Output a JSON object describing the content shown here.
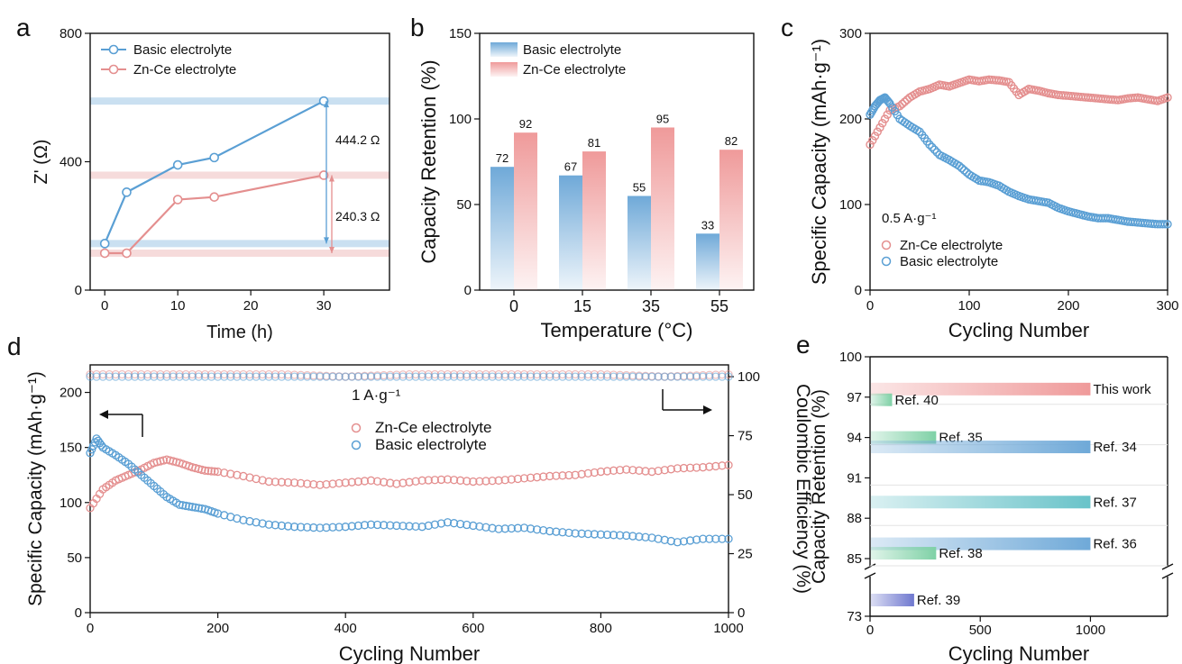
{
  "colors": {
    "blue": "#5a9fd4",
    "red": "#e48f8f",
    "blue_fill": "#6fa9d8",
    "red_fill": "#ef9a9a",
    "green": "#7fd1a6",
    "teal": "#69c3c9",
    "purple": "#6f78cf"
  },
  "chart_data": [
    {
      "panel": "a",
      "type": "line",
      "xlabel": "Time (h)",
      "ylabel": "Z' (Ω)",
      "xlim": [
        -2,
        39
      ],
      "ylim": [
        0,
        800
      ],
      "xticks": [
        "0",
        "10",
        "20",
        "30"
      ],
      "yticks": [
        "0",
        "400",
        "800"
      ],
      "legend": [
        "Basic electrolyte",
        "Zn-Ce electrolyte"
      ],
      "series": [
        {
          "name": "Basic electrolyte",
          "x": [
            0,
            3,
            10,
            15,
            30
          ],
          "y": [
            145,
            305,
            390,
            413,
            589
          ]
        },
        {
          "name": "Zn-Ce electrolyte",
          "x": [
            0,
            3,
            10,
            15,
            30
          ],
          "y": [
            115,
            115,
            282,
            290,
            358
          ]
        }
      ],
      "annotations": [
        "444.2 Ω",
        "240.3 Ω"
      ]
    },
    {
      "panel": "b",
      "type": "bar",
      "xlabel": "Temperature (°C)",
      "ylabel": "Capacity Retention (%)",
      "ylim": [
        0,
        150
      ],
      "categories": [
        "0",
        "15",
        "35",
        "55"
      ],
      "yticks": [
        "0",
        "50",
        "100",
        "150"
      ],
      "series": [
        {
          "name": "Basic electrolyte",
          "values": [
            72,
            67,
            55,
            33
          ]
        },
        {
          "name": "Zn-Ce electrolyte",
          "values": [
            92,
            81,
            95,
            82
          ]
        }
      ]
    },
    {
      "panel": "c",
      "type": "scatter",
      "xlabel": "Cycling Number",
      "ylabel": "Specific Capacity (mAh·g⁻¹)",
      "xlim": [
        0,
        300
      ],
      "ylim": [
        0,
        300
      ],
      "xticks": [
        "0",
        "100",
        "200",
        "300"
      ],
      "yticks": [
        "0",
        "100",
        "200",
        "300"
      ],
      "annotation": "0.5 A·g⁻¹",
      "series": [
        {
          "name": "Zn-Ce electrolyte",
          "x": [
            0,
            10,
            20,
            30,
            40,
            50,
            60,
            70,
            80,
            90,
            100,
            110,
            120,
            130,
            140,
            150,
            160,
            170,
            180,
            190,
            200,
            210,
            220,
            230,
            240,
            250,
            260,
            270,
            280,
            290,
            300
          ],
          "y": [
            170,
            190,
            210,
            215,
            225,
            232,
            235,
            240,
            238,
            242,
            246,
            244,
            246,
            245,
            243,
            228,
            235,
            233,
            230,
            228,
            227,
            226,
            225,
            224,
            223,
            222,
            224,
            225,
            223,
            221,
            225
          ]
        },
        {
          "name": "Basic electrolyte",
          "x": [
            0,
            5,
            10,
            15,
            20,
            30,
            40,
            50,
            60,
            70,
            80,
            90,
            100,
            110,
            120,
            130,
            140,
            150,
            160,
            170,
            180,
            190,
            200,
            210,
            220,
            230,
            240,
            250,
            260,
            270,
            280,
            290,
            300
          ],
          "y": [
            205,
            215,
            222,
            225,
            218,
            200,
            192,
            185,
            170,
            158,
            152,
            145,
            135,
            128,
            126,
            122,
            115,
            110,
            106,
            104,
            102,
            96,
            92,
            89,
            86,
            84,
            84,
            82,
            80,
            79,
            78,
            77,
            77
          ]
        }
      ]
    },
    {
      "panel": "d",
      "type": "scatter",
      "xlabel": "Cycling Number",
      "ylabel": "Specific Capacity (mAh·g⁻¹)",
      "y2label": "Coulombic Efficiency (%)",
      "xlim": [
        0,
        1000
      ],
      "ylim": [
        0,
        225
      ],
      "y2lim": [
        0,
        105
      ],
      "xticks": [
        "0",
        "200",
        "400",
        "600",
        "800",
        "1000"
      ],
      "yticks": [
        "0",
        "50",
        "100",
        "150",
        "200"
      ],
      "y2ticks": [
        "0",
        "25",
        "50",
        "75",
        "100"
      ],
      "annotation": "1 A·g⁻¹",
      "series": [
        {
          "name": "Zn-Ce electrolyte",
          "x": [
            0,
            20,
            40,
            60,
            80,
            100,
            120,
            140,
            160,
            180,
            200,
            240,
            280,
            320,
            360,
            400,
            440,
            480,
            520,
            560,
            600,
            640,
            680,
            720,
            760,
            800,
            840,
            880,
            920,
            960,
            1000
          ],
          "y": [
            95,
            112,
            120,
            125,
            130,
            136,
            139,
            136,
            132,
            129,
            128,
            124,
            119,
            118,
            116,
            118,
            120,
            117,
            120,
            121,
            119,
            120,
            122,
            124,
            125,
            128,
            130,
            128,
            131,
            132,
            134
          ]
        },
        {
          "name": "Basic electrolyte",
          "x": [
            0,
            10,
            20,
            40,
            60,
            80,
            100,
            120,
            140,
            160,
            180,
            200,
            240,
            280,
            320,
            360,
            400,
            440,
            480,
            520,
            560,
            600,
            640,
            680,
            720,
            760,
            800,
            840,
            880,
            920,
            960,
            1000
          ],
          "y": [
            145,
            158,
            150,
            143,
            135,
            125,
            115,
            105,
            98,
            96,
            94,
            90,
            84,
            80,
            78,
            77,
            78,
            80,
            79,
            78,
            82,
            79,
            76,
            77,
            74,
            72,
            71,
            70,
            68,
            64,
            67,
            67
          ]
        },
        {
          "name": "Zn-Ce electrolyte CE",
          "x": [
            0,
            100,
            200,
            300,
            400,
            500,
            600,
            700,
            800,
            900,
            1000
          ],
          "y": [
            101,
            101,
            101,
            101,
            100,
            101,
            101,
            101,
            101,
            100,
            101
          ]
        },
        {
          "name": "Basic electrolyte CE",
          "x": [
            0,
            100,
            200,
            300,
            400,
            500,
            600,
            700,
            800,
            900,
            1000
          ],
          "y": [
            100,
            100,
            100,
            100,
            100,
            100,
            100,
            100,
            100,
            100,
            100
          ]
        }
      ]
    },
    {
      "panel": "e",
      "type": "bar",
      "xlabel": "Cycling Number",
      "ylabel": "Capacity Retention (%)",
      "xticks": [
        "0",
        "500",
        "1000"
      ],
      "yticks": [
        "73",
        "85",
        "88",
        "91",
        "94",
        "97",
        "100"
      ],
      "xlim": [
        0,
        1350
      ],
      "bars": [
        {
          "label": "This work",
          "cycles": 1000,
          "retention": 97.6
        },
        {
          "label": "Ref. 40",
          "cycles": 100,
          "retention": 96.8
        },
        {
          "label": "Ref. 35",
          "cycles": 300,
          "retention": 94
        },
        {
          "label": "Ref. 34",
          "cycles": 1000,
          "retention": 93.3
        },
        {
          "label": "Ref. 37",
          "cycles": 1000,
          "retention": 89.2
        },
        {
          "label": "Ref. 36",
          "cycles": 1000,
          "retention": 86.1
        },
        {
          "label": "Ref. 38",
          "cycles": 300,
          "retention": 85.4
        },
        {
          "label": "Ref. 39",
          "cycles": 200,
          "retention": 76
        }
      ]
    }
  ]
}
